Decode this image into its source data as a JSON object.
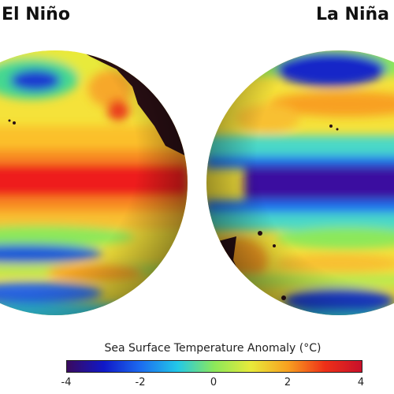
{
  "titles": {
    "left": "El Niño",
    "right": "La Niña"
  },
  "colorbar": {
    "label": "Sea Surface Temperature Anomaly (°C)",
    "min": -4,
    "max": 4,
    "ticks": [
      "-4",
      "-2",
      "0",
      "2",
      "4"
    ],
    "colors": [
      "#3a0a5e",
      "#1018c8",
      "#1c6cf0",
      "#22c8e8",
      "#8ce85a",
      "#e8ea3a",
      "#f8a020",
      "#ee3018",
      "#c8102a"
    ]
  },
  "globes": {
    "left": {
      "name": "El Niño",
      "equatorial_anomaly": "warm",
      "equatorial_color": "#ee1e1e",
      "north_pool_color": "#1a3ad0",
      "land_color": "#2a0f14"
    },
    "right": {
      "name": "La Niña",
      "equatorial_anomaly": "cold",
      "equatorial_color": "#3a0aa0",
      "north_pool_color": "#1628c8",
      "land_color": "#2a0f14"
    }
  }
}
